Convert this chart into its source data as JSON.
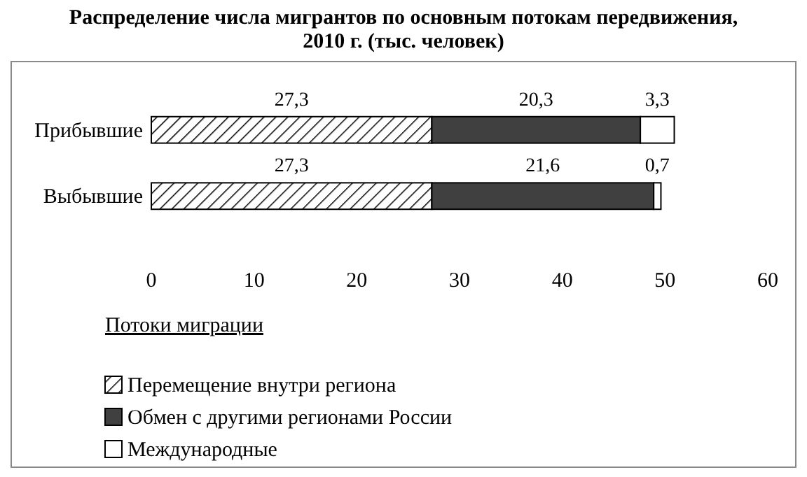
{
  "chart_data": {
    "type": "bar",
    "orientation": "horizontal",
    "stacked": true,
    "title": "Распределение числа мигрантов по основным потокам передвижения, 2010 г. (тыс. человек)",
    "categories": [
      "Прибывшие",
      "Выбывшие"
    ],
    "series": [
      {
        "name": "Перемещение внутри региона",
        "color": "#000000",
        "values": [
          27.3,
          27.3
        ],
        "value_labels": [
          "27,3",
          "27,3"
        ]
      },
      {
        "name": "Обмен с другими регионами России",
        "color": "#404040",
        "values": [
          20.3,
          21.6
        ],
        "value_labels": [
          "20,3",
          "21,6"
        ]
      },
      {
        "name": "Международные",
        "color": "#ffffff",
        "values": [
          3.3,
          0.7
        ],
        "value_labels": [
          "3,3",
          "0,7"
        ]
      }
    ],
    "xlim": [
      0,
      60
    ],
    "xticks": [
      0,
      10,
      20,
      30,
      40,
      50,
      60
    ],
    "grid": false,
    "legend": "bottom",
    "legend_title": "Потоки миграции"
  }
}
